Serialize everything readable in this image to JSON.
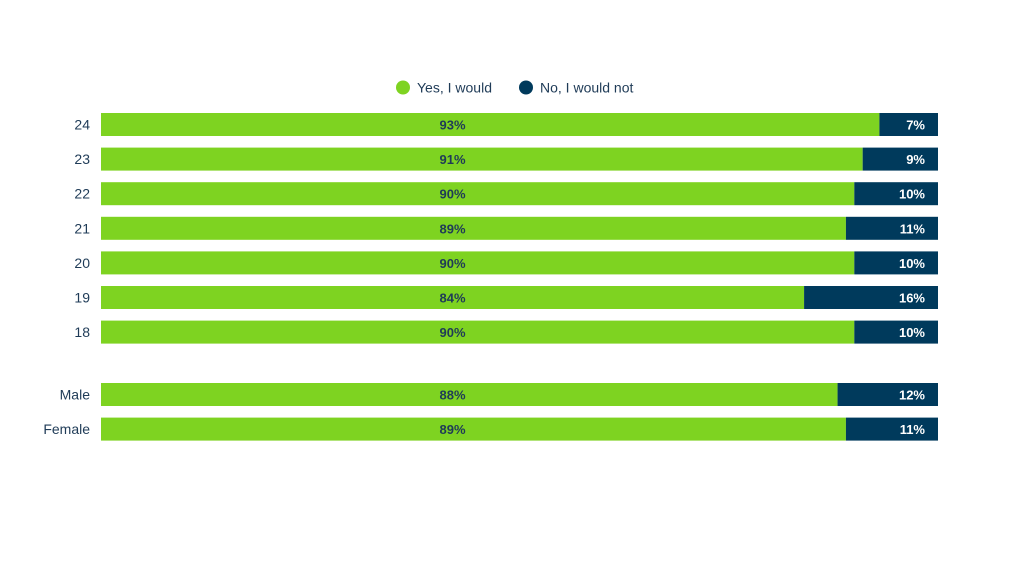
{
  "chart_data": {
    "type": "bar",
    "orientation": "horizontal",
    "stacked": true,
    "percent_stacked": true,
    "groups": [
      {
        "categories": [
          "24",
          "23",
          "22",
          "21",
          "20",
          "19",
          "18"
        ]
      },
      {
        "categories": [
          "Male",
          "Female"
        ]
      }
    ],
    "categories": [
      "24",
      "23",
      "22",
      "21",
      "20",
      "19",
      "18",
      "Male",
      "Female"
    ],
    "series": [
      {
        "name": "Yes, I would",
        "values": [
          93,
          91,
          90,
          89,
          90,
          84,
          90,
          88,
          89
        ],
        "color": "#7ed321"
      },
      {
        "name": "No, I would not",
        "values": [
          7,
          9,
          10,
          11,
          10,
          16,
          10,
          12,
          11
        ],
        "color": "#003a5c"
      }
    ],
    "value_format": "{v}%",
    "xlim": [
      0,
      100
    ],
    "legend_position": "top-center",
    "grid": false,
    "title": "",
    "xlabel": "",
    "ylabel": ""
  }
}
